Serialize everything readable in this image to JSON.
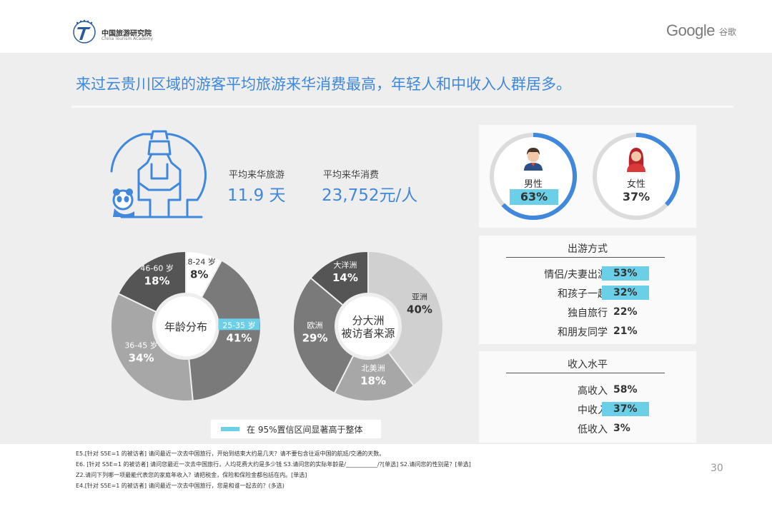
{
  "header": {
    "org_cn": "中国旅游研究院",
    "org_en": "China Tourism Academy",
    "brand": "Google",
    "brand_cn": "谷歌"
  },
  "title": "来过云贵川区域的游客平均旅游来华消费最高，年轻人和中收入人群居多。",
  "stats": {
    "days_label": "平均来华旅游",
    "days_value": "11.9 天",
    "spend_label": "平均来华消费",
    "spend_value": "23,752元/人"
  },
  "colors": {
    "accent": "#3f88dc",
    "highlight": "#6bcfe8"
  },
  "chart_data": [
    {
      "type": "pie",
      "title": "年龄分布",
      "slices": [
        {
          "label": "18-24 岁",
          "value": 8,
          "display": "8%",
          "color": "#ffffff",
          "highlight": false
        },
        {
          "label": "25-35 岁",
          "value": 41,
          "display": "41%",
          "color": "#7a7a7a",
          "highlight": true
        },
        {
          "label": "36-45 岁",
          "value": 34,
          "display": "34%",
          "color": "#a7a7a7",
          "highlight": false
        },
        {
          "label": "46-60 岁",
          "value": 18,
          "display": "18%",
          "color": "#555555",
          "highlight": false
        }
      ]
    },
    {
      "type": "pie",
      "title": "分大洲被访者来源",
      "title_lines": [
        "分大洲",
        "被访者来源"
      ],
      "slices": [
        {
          "label": "亚洲",
          "value": 40,
          "display": "40%",
          "color": "#d0d0d0",
          "highlight": false
        },
        {
          "label": "北美洲",
          "value": 18,
          "display": "18%",
          "color": "#a7a7a7",
          "highlight": false
        },
        {
          "label": "欧洲",
          "value": 29,
          "display": "29%",
          "color": "#7a7a7a",
          "highlight": false
        },
        {
          "label": "大洋洲",
          "value": 14,
          "display": "14%",
          "color": "#555555",
          "highlight": false
        }
      ]
    }
  ],
  "gender": {
    "male": {
      "label": "男性",
      "value": "63%",
      "fraction": 0.63
    },
    "female": {
      "label": "女性",
      "value": "37%",
      "fraction": 0.37
    }
  },
  "travel_mode": {
    "title": "出游方式",
    "rows": [
      {
        "label": "情侣/夫妻出游",
        "value": "53%",
        "highlight": true
      },
      {
        "label": "和孩子一起",
        "value": "32%",
        "highlight": true
      },
      {
        "label": "独自旅行",
        "value": "22%",
        "highlight": false
      },
      {
        "label": "和朋友同学",
        "value": "21%",
        "highlight": false
      }
    ]
  },
  "income": {
    "title": "收入水平",
    "rows": [
      {
        "label": "高收入",
        "value": "58%",
        "highlight": false
      },
      {
        "label": "中收入",
        "value": "37%",
        "highlight": true
      },
      {
        "label": "低收入",
        "value": "3%",
        "highlight": false
      }
    ]
  },
  "legend": {
    "text": "在 95%置信区间显著高于整体"
  },
  "notes": [
    "E5.[针对 S5E=1 的被访者] 请问最近一次去中国旅行，开始到结束大约是几天？请不要包含往返中国的航班/交通的天数。",
    "E6. [针对 S5E=1 的被访者] 请问您最近一次去中国旅行，人均花费大约是多少钱 S3.请问您的实际年龄是/___________/?[单选] S2.请问您的性别是？[单选]",
    "Z2.请问下列哪一项最能代表您的家庭年收入？请把税金，保险和保险金都包括在内。[单选]",
    "E4.[针对 S5E=1 的被访者] 请问最近一次去中国旅行，您是和谁一起去的？(多选)"
  ],
  "page_number": "30"
}
